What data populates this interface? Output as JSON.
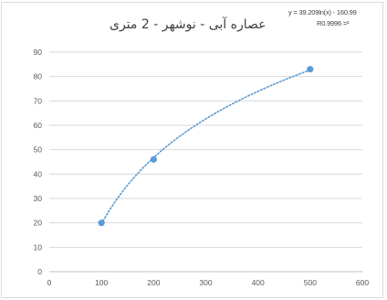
{
  "chart_data": {
    "type": "scatter",
    "title": "عصاره آبی - نوشهر - 2 متری",
    "trendline": {
      "type": "logarithmic",
      "equation": "y = 39.209ln(x) - 160.99",
      "r_squared_label": "R0.9996 =²",
      "a": 39.209,
      "b": -160.99
    },
    "x": [
      100,
      200,
      500
    ],
    "y": [
      20,
      46,
      83
    ],
    "xlim": [
      0,
      600
    ],
    "ylim": [
      0,
      90
    ],
    "x_ticks": [
      0,
      100,
      200,
      300,
      400,
      500,
      600
    ],
    "y_ticks": [
      0,
      10,
      20,
      30,
      40,
      50,
      60,
      70,
      80,
      90
    ],
    "grid": "horizontal",
    "legend": "none",
    "colors": {
      "marker": "#5b9bd5",
      "trendline": "#5b9bd5",
      "grid": "#d9d9d9",
      "axis": "#bfbfbf",
      "text": "#595959"
    }
  }
}
